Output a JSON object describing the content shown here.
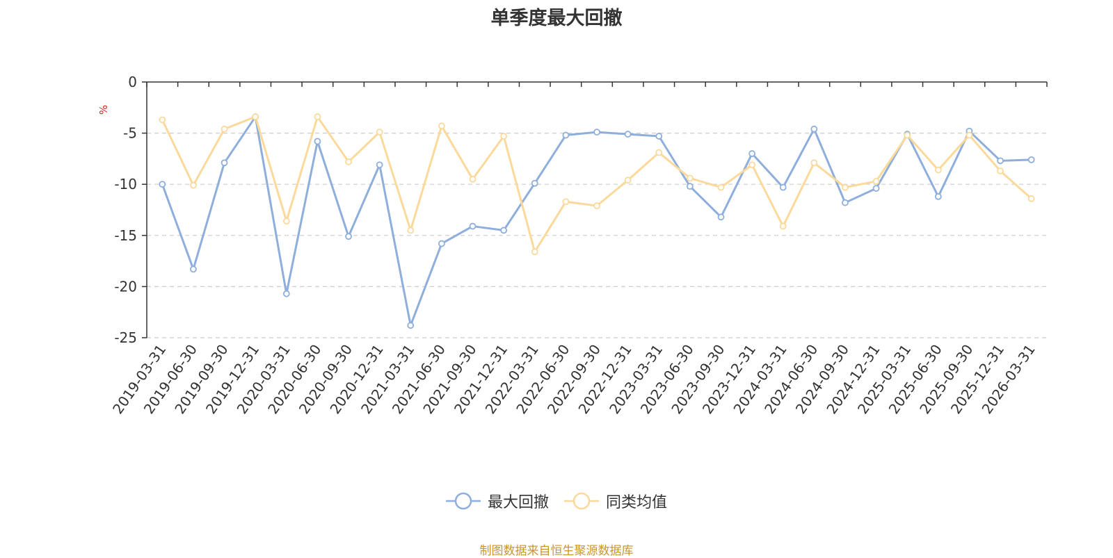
{
  "title": "单季度最大回撤",
  "source_note": "制图数据来自恒生聚源数据库",
  "chart_data": {
    "type": "line",
    "title": "单季度最大回撤",
    "ylabel": "%",
    "xlabel": "",
    "ylim": [
      -25,
      0
    ],
    "yticks": [
      0,
      -5,
      -10,
      -15,
      -20,
      -25
    ],
    "grid": "horizontal dashed",
    "legend_position": "bottom",
    "categories": [
      "2019-03-31",
      "2019-06-30",
      "2019-09-30",
      "2019-12-31",
      "2020-03-31",
      "2020-06-30",
      "2020-09-30",
      "2020-12-31",
      "2021-03-31",
      "2021-06-30",
      "2021-09-30",
      "2021-12-31",
      "2022-03-31",
      "2022-06-30",
      "2022-09-30",
      "2022-12-31",
      "2023-03-31",
      "2023-06-30",
      "2023-09-30",
      "2023-12-31",
      "2024-03-31",
      "2024-06-30",
      "2024-09-30",
      "2024-12-31",
      "2025-03-31",
      "2025-06-30",
      "2025-09-30",
      "2025-12-31",
      "2026-03-31"
    ],
    "series": [
      {
        "name": "最大回撤",
        "color": "#8eaedb",
        "values": [
          -10.0,
          -18.3,
          -7.9,
          -3.4,
          -20.7,
          -5.8,
          -15.1,
          -8.1,
          -23.8,
          -15.8,
          -14.1,
          -14.5,
          -9.9,
          -5.2,
          -4.9,
          -5.1,
          -5.3,
          -10.2,
          -13.2,
          -7.0,
          -10.3,
          -4.6,
          -11.8,
          -10.4,
          -5.1,
          -11.2,
          -4.8,
          -7.7,
          -7.6
        ]
      },
      {
        "name": "同类均值",
        "color": "#fbd99a",
        "values": [
          -3.7,
          -10.1,
          -4.6,
          -3.4,
          -13.6,
          -3.4,
          -7.8,
          -4.9,
          -14.5,
          -4.3,
          -9.5,
          -5.3,
          -16.6,
          -11.7,
          -12.1,
          -9.6,
          -6.9,
          -9.4,
          -10.3,
          -8.1,
          -14.1,
          -7.9,
          -10.3,
          -9.7,
          -5.2,
          -8.6,
          -5.2,
          -8.7,
          -11.4
        ]
      }
    ]
  }
}
